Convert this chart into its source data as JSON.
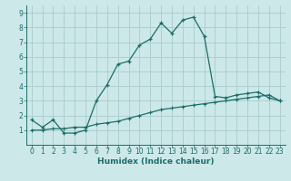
{
  "xlabel": "Humidex (Indice chaleur)",
  "background_color": "#cce8e8",
  "grid_color": "#aacccc",
  "line_color": "#1a6e6a",
  "xlim": [
    -0.5,
    23.5
  ],
  "ylim": [
    0,
    9.5
  ],
  "xticks": [
    0,
    1,
    2,
    3,
    4,
    5,
    6,
    7,
    8,
    9,
    10,
    11,
    12,
    13,
    14,
    15,
    16,
    17,
    18,
    19,
    20,
    21,
    22,
    23
  ],
  "yticks": [
    1,
    2,
    3,
    4,
    5,
    6,
    7,
    8,
    9
  ],
  "line1_x": [
    0,
    1,
    2,
    3,
    4,
    5,
    6,
    7,
    8,
    9,
    10,
    11,
    12,
    13,
    14,
    15,
    16,
    17,
    18,
    19,
    20,
    21,
    22,
    23
  ],
  "line1_y": [
    1.7,
    1.2,
    1.7,
    0.8,
    0.8,
    1.0,
    3.0,
    4.1,
    5.5,
    5.7,
    6.8,
    7.2,
    8.3,
    7.6,
    8.5,
    8.7,
    7.4,
    3.3,
    3.2,
    3.4,
    3.5,
    3.6,
    3.2,
    3.0
  ],
  "line2_x": [
    0,
    1,
    2,
    3,
    4,
    5,
    6,
    7,
    8,
    9,
    10,
    11,
    12,
    13,
    14,
    15,
    16,
    17,
    18,
    19,
    20,
    21,
    22,
    23
  ],
  "line2_y": [
    1.0,
    1.0,
    1.1,
    1.1,
    1.2,
    1.2,
    1.4,
    1.5,
    1.6,
    1.8,
    2.0,
    2.2,
    2.4,
    2.5,
    2.6,
    2.7,
    2.8,
    2.9,
    3.0,
    3.1,
    3.2,
    3.3,
    3.4,
    3.0
  ],
  "tick_fontsize": 5.5,
  "xlabel_fontsize": 6.5,
  "marker_size": 3.5
}
